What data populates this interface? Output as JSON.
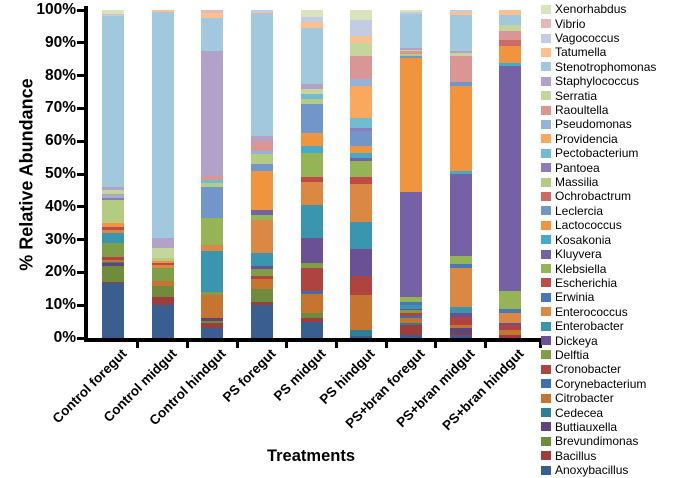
{
  "chart_data": {
    "type": "bar",
    "variant": "stacked-percent",
    "title": "",
    "xlabel": "Treatments",
    "ylabel": "% Relative Abundance",
    "ylim": [
      0,
      100
    ],
    "grid": false,
    "legend_position": "right",
    "y_ticks": [
      "0%",
      "10%",
      "20%",
      "30%",
      "40%",
      "50%",
      "60%",
      "70%",
      "80%",
      "90%",
      "100%"
    ],
    "categories": [
      "Control foregut",
      "Control midgut",
      "Control hindgut",
      "PS foregut",
      "PS midgut",
      "PS hindgut",
      "PS+bran foregut",
      "PS+bran midgut",
      "PS+bran hindgut"
    ],
    "genera": [
      {
        "name": "Xenorhabdus",
        "color": "#D7E4BC"
      },
      {
        "name": "Vibrio",
        "color": "#E5B9B7"
      },
      {
        "name": "Vagococcus",
        "color": "#C3CCE3"
      },
      {
        "name": "Tatumella",
        "color": "#FAC090"
      },
      {
        "name": "Stenotrophomonas",
        "color": "#A2C8DE"
      },
      {
        "name": "Staphylococcus",
        "color": "#B2A2C7"
      },
      {
        "name": "Serratia",
        "color": "#C3D69B"
      },
      {
        "name": "Raoultella",
        "color": "#D99694"
      },
      {
        "name": "Pseudomonas",
        "color": "#95B3D7"
      },
      {
        "name": "Providencia",
        "color": "#FAA75F"
      },
      {
        "name": "Pectobacterium",
        "color": "#70BDD1"
      },
      {
        "name": "Pantoea",
        "color": "#8E7CB8"
      },
      {
        "name": "Massilia",
        "color": "#B3CC82"
      },
      {
        "name": "Ochrobactrum",
        "color": "#CE6B66"
      },
      {
        "name": "Leclercia",
        "color": "#7396CA"
      },
      {
        "name": "Lactococcus",
        "color": "#F0943E"
      },
      {
        "name": "Kosakonia",
        "color": "#46AAC8"
      },
      {
        "name": "Kluyvera",
        "color": "#7561A5"
      },
      {
        "name": "Klebsiella",
        "color": "#94B455"
      },
      {
        "name": "Escherichia",
        "color": "#BE4B48"
      },
      {
        "name": "Erwinia",
        "color": "#4779B8"
      },
      {
        "name": "Enterococcus",
        "color": "#DB8845"
      },
      {
        "name": "Enterobacter",
        "color": "#3A96AE"
      },
      {
        "name": "Dickeya",
        "color": "#6A5196"
      },
      {
        "name": "Delftia",
        "color": "#7F9E45"
      },
      {
        "name": "Cronobacter",
        "color": "#AE4340"
      },
      {
        "name": "Corynebacterium",
        "color": "#3D6EB0"
      },
      {
        "name": "Citrobacter",
        "color": "#C5752F"
      },
      {
        "name": "Cedecea",
        "color": "#2D7F96"
      },
      {
        "name": "Buttiauxella",
        "color": "#5D4777"
      },
      {
        "name": "Brevundimonas",
        "color": "#6E8C3C"
      },
      {
        "name": "Bacillus",
        "color": "#9E3D3A"
      },
      {
        "name": "Anoxybacillus",
        "color": "#395E90"
      }
    ],
    "bars": [
      {
        "category": "Control foregut",
        "segments": [
          [
            "Anoxybacillus",
            16.8
          ],
          [
            "Bacillus",
            0.4
          ],
          [
            "Brevundimonas",
            4.9
          ],
          [
            "Buttiauxella",
            0.9
          ],
          [
            "Cedecea",
            0.3
          ],
          [
            "Citrobacter",
            0.4
          ],
          [
            "Cronobacter",
            0.9
          ],
          [
            "Delftia",
            4.3
          ],
          [
            "Enterobacter",
            3.0
          ],
          [
            "Enterococcus",
            1.2
          ],
          [
            "Escherichia",
            0.9
          ],
          [
            "Lactococcus",
            1.2
          ],
          [
            "Massilia",
            7.0
          ],
          [
            "Pantoea",
            0.6
          ],
          [
            "Pseudomonas",
            0.8
          ],
          [
            "Raoultella",
            0.5
          ],
          [
            "Serratia",
            1.2
          ],
          [
            "Staphylococcus",
            0.8
          ],
          [
            "Stenotrophomonas",
            52.0
          ],
          [
            "Vagococcus",
            0.5
          ],
          [
            "Vibrio",
            0.4
          ],
          [
            "Xenorhabdus",
            1.0
          ]
        ]
      },
      {
        "category": "Control midgut",
        "segments": [
          [
            "Anoxybacillus",
            10.0
          ],
          [
            "Bacillus",
            2.5
          ],
          [
            "Brevundimonas",
            3.5
          ],
          [
            "Citrobacter",
            1.5
          ],
          [
            "Delftia",
            4.0
          ],
          [
            "Enterococcus",
            0.8
          ],
          [
            "Escherichia",
            0.7
          ],
          [
            "Lactococcus",
            0.5
          ],
          [
            "Massilia",
            1.0
          ],
          [
            "Serratia",
            3.0
          ],
          [
            "Staphylococcus",
            3.0
          ],
          [
            "Stenotrophomonas",
            69.0
          ],
          [
            "Tatumella",
            0.5
          ]
        ]
      },
      {
        "category": "Control hindgut",
        "segments": [
          [
            "Anoxybacillus",
            3.0
          ],
          [
            "Bacillus",
            1.5
          ],
          [
            "Brevundimonas",
            0.8
          ],
          [
            "Buttiauxella",
            0.7
          ],
          [
            "Citrobacter",
            7.0
          ],
          [
            "Delftia",
            1.0
          ],
          [
            "Enterobacter",
            12.5
          ],
          [
            "Enterococcus",
            2.0
          ],
          [
            "Klebsiella",
            8.0
          ],
          [
            "Leclercia",
            9.5
          ],
          [
            "Massilia",
            1.2
          ],
          [
            "Pectobacterium",
            1.0
          ],
          [
            "Raoultella",
            1.3
          ],
          [
            "Staphylococcus",
            38.0
          ],
          [
            "Stenotrophomonas",
            10.0
          ],
          [
            "Tatumella",
            1.5
          ],
          [
            "Vibrio",
            1.0
          ]
        ]
      },
      {
        "category": "PS foregut",
        "segments": [
          [
            "Anoxybacillus",
            10.0
          ],
          [
            "Bacillus",
            1.0
          ],
          [
            "Brevundimonas",
            4.0
          ],
          [
            "Citrobacter",
            3.0
          ],
          [
            "Cronobacter",
            1.0
          ],
          [
            "Delftia",
            2.0
          ],
          [
            "Dickeya",
            1.0
          ],
          [
            "Enterobacter",
            4.0
          ],
          [
            "Enterococcus",
            10.0
          ],
          [
            "Klebsiella",
            1.5
          ],
          [
            "Kluyvera",
            1.5
          ],
          [
            "Lactococcus",
            12.0
          ],
          [
            "Leclercia",
            2.0
          ],
          [
            "Massilia",
            3.0
          ],
          [
            "Pseudomonas",
            1.0
          ],
          [
            "Raoultella",
            3.0
          ],
          [
            "Staphylococcus",
            1.5
          ],
          [
            "Stenotrophomonas",
            37.5
          ],
          [
            "Tatumella",
            0.5
          ],
          [
            "Vagococcus",
            0.5
          ]
        ]
      },
      {
        "category": "PS midgut",
        "segments": [
          [
            "Anoxybacillus",
            5.0
          ],
          [
            "Bacillus",
            1.0
          ],
          [
            "Brevundimonas",
            1.5
          ],
          [
            "Citrobacter",
            6.0
          ],
          [
            "Corynebacterium",
            1.0
          ],
          [
            "Cronobacter",
            7.0
          ],
          [
            "Delftia",
            1.5
          ],
          [
            "Dickeya",
            7.5
          ],
          [
            "Enterobacter",
            10.0
          ],
          [
            "Enterococcus",
            7.0
          ],
          [
            "Escherichia",
            1.5
          ],
          [
            "Klebsiella",
            7.5
          ],
          [
            "Kosakonia",
            2.0
          ],
          [
            "Lactococcus",
            4.0
          ],
          [
            "Leclercia",
            9.0
          ],
          [
            "Massilia",
            1.5
          ],
          [
            "Pectobacterium",
            1.5
          ],
          [
            "Serratia",
            1.5
          ],
          [
            "Staphylococcus",
            1.5
          ],
          [
            "Stenotrophomonas",
            17.0
          ],
          [
            "Tatumella",
            2.0
          ],
          [
            "Vagococcus",
            1.5
          ],
          [
            "Xenorhabdus",
            2.0
          ]
        ]
      },
      {
        "category": "PS hindgut",
        "segments": [
          [
            "Anoxybacillus",
            0.5
          ],
          [
            "Cedecea",
            2.0
          ],
          [
            "Citrobacter",
            10.5
          ],
          [
            "Cronobacter",
            6.0
          ],
          [
            "Dickeya",
            8.0
          ],
          [
            "Enterobacter",
            8.5
          ],
          [
            "Enterococcus",
            11.5
          ],
          [
            "Escherichia",
            2.0
          ],
          [
            "Klebsiella",
            5.0
          ],
          [
            "Kluyvera",
            1.0
          ],
          [
            "Kosakonia",
            1.5
          ],
          [
            "Lactococcus",
            2.0
          ],
          [
            "Leclercia",
            4.5
          ],
          [
            "Pantoea",
            1.0
          ],
          [
            "Pectobacterium",
            3.0
          ],
          [
            "Providencia",
            10.0
          ],
          [
            "Pseudomonas",
            2.0
          ],
          [
            "Raoultella",
            7.0
          ],
          [
            "Serratia",
            4.0
          ],
          [
            "Tatumella",
            2.0
          ],
          [
            "Vagococcus",
            5.0
          ],
          [
            "Xenorhabdus",
            3.0
          ]
        ]
      },
      {
        "category": "PS+bran foregut",
        "segments": [
          [
            "Anoxybacillus",
            1.0
          ],
          [
            "Bacillus",
            3.0
          ],
          [
            "Cedecea",
            0.5
          ],
          [
            "Citrobacter",
            1.5
          ],
          [
            "Corynebacterium",
            0.8
          ],
          [
            "Cronobacter",
            0.7
          ],
          [
            "Delftia",
            1.0
          ],
          [
            "Dickeya",
            0.5
          ],
          [
            "Enterobacter",
            1.0
          ],
          [
            "Erwinia",
            1.0
          ],
          [
            "Klebsiella",
            1.5
          ],
          [
            "Kluyvera",
            32.0
          ],
          [
            "Lactococcus",
            41.0
          ],
          [
            "Leclercia",
            0.5
          ],
          [
            "Massilia",
            0.5
          ],
          [
            "Raoultella",
            1.0
          ],
          [
            "Serratia",
            0.5
          ],
          [
            "Staphylococcus",
            0.5
          ],
          [
            "Stenotrophomonas",
            10.5
          ],
          [
            "Vagococcus",
            0.5
          ],
          [
            "Xenorhabdus",
            0.5
          ]
        ]
      },
      {
        "category": "PS+bran midgut",
        "segments": [
          [
            "Anoxybacillus",
            0.5
          ],
          [
            "Bacillus",
            0.5
          ],
          [
            "Buttiauxella",
            2.0
          ],
          [
            "Citrobacter",
            1.0
          ],
          [
            "Cronobacter",
            2.5
          ],
          [
            "Dickeya",
            1.0
          ],
          [
            "Enterobacter",
            2.0
          ],
          [
            "Enterococcus",
            12.0
          ],
          [
            "Erwinia",
            1.0
          ],
          [
            "Klebsiella",
            2.5
          ],
          [
            "Kluyvera",
            25.0
          ],
          [
            "Kosakonia",
            1.0
          ],
          [
            "Lactococcus",
            26.0
          ],
          [
            "Leclercia",
            1.0
          ],
          [
            "Raoultella",
            8.0
          ],
          [
            "Serratia",
            1.0
          ],
          [
            "Staphylococcus",
            0.5
          ],
          [
            "Stenotrophomonas",
            11.0
          ],
          [
            "Tatumella",
            1.0
          ],
          [
            "Vagococcus",
            0.5
          ]
        ]
      },
      {
        "category": "PS+bran hindgut",
        "segments": [
          [
            "Bacillus",
            1.0
          ],
          [
            "Citrobacter",
            1.5
          ],
          [
            "Cronobacter",
            1.5
          ],
          [
            "Dickeya",
            0.5
          ],
          [
            "Enterococcus",
            3.0
          ],
          [
            "Erwinia",
            1.5
          ],
          [
            "Klebsiella",
            5.5
          ],
          [
            "Kluyvera",
            68.5
          ],
          [
            "Kosakonia",
            1.0
          ],
          [
            "Lactococcus",
            5.0
          ],
          [
            "Ochrobactrum",
            2.0
          ],
          [
            "Raoultella",
            2.5
          ],
          [
            "Serratia",
            2.0
          ],
          [
            "Stenotrophomonas",
            3.0
          ],
          [
            "Tatumella",
            1.5
          ]
        ]
      }
    ]
  }
}
